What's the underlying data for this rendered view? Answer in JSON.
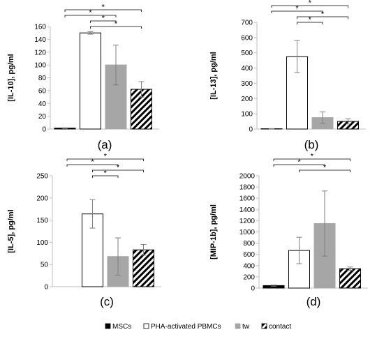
{
  "chart_data": [
    {
      "type": "bar",
      "panel_label": "(a)",
      "ylabel": "[IL-10], pg/ml",
      "ylim": [
        0,
        160
      ],
      "ytick_step": 20,
      "categories": [
        "MSCs",
        "PHA-activated PBMCs",
        "tw",
        "contact"
      ],
      "values": [
        1.5,
        150,
        100,
        62
      ],
      "errors": [
        0.5,
        2,
        31,
        12
      ],
      "significance": [
        {
          "from": 0,
          "to": 3,
          "label": "*"
        },
        {
          "from": 0,
          "to": 2,
          "label": "*"
        },
        {
          "from": 1,
          "to": 2,
          "label": "*"
        },
        {
          "from": 1,
          "to": 3,
          "label": "*"
        }
      ]
    },
    {
      "type": "bar",
      "panel_label": "(b)",
      "ylabel": "[IL-13], pg/ml",
      "ylim": [
        0,
        700
      ],
      "ytick_step": 100,
      "categories": [
        "MSCs",
        "PHA-activated PBMCs",
        "tw",
        "contact"
      ],
      "values": [
        2,
        475,
        75,
        50
      ],
      "errors": [
        1,
        105,
        38,
        17
      ],
      "significance": [
        {
          "from": 0,
          "to": 3,
          "label": "*"
        },
        {
          "from": 0,
          "to": 2,
          "label": "*"
        },
        {
          "from": 1,
          "to": 3,
          "label": "*"
        },
        {
          "from": 1,
          "to": 2,
          "label": "*"
        }
      ]
    },
    {
      "type": "bar",
      "panel_label": "(c)",
      "ylabel": "[IL-5], pg/ml",
      "ylim": [
        0,
        250
      ],
      "ytick_step": 50,
      "categories": [
        "MSCs",
        "PHA-activated PBMCs",
        "tw",
        "contact"
      ],
      "values": [
        0,
        164,
        68,
        83
      ],
      "errors": [
        0,
        32,
        42,
        12
      ],
      "significance": [
        {
          "from": 0,
          "to": 3,
          "label": "*"
        },
        {
          "from": 0,
          "to": 2,
          "label": "*"
        },
        {
          "from": 1,
          "to": 3,
          "label": "*"
        },
        {
          "from": 1,
          "to": 2,
          "label": "*"
        }
      ]
    },
    {
      "type": "bar",
      "panel_label": "(d)",
      "ylabel": "[MIP-1b], pg/ml",
      "ylim": [
        0,
        2000
      ],
      "ytick_step": 200,
      "categories": [
        "MSCs",
        "PHA-activated PBMCs",
        "tw",
        "contact"
      ],
      "values": [
        45,
        670,
        1150,
        345
      ],
      "errors": [
        10,
        235,
        580,
        30
      ],
      "significance": [
        {
          "from": 0,
          "to": 3,
          "label": "*"
        },
        {
          "from": 0,
          "to": 2,
          "label": "*"
        },
        {
          "from": 1,
          "to": 3,
          "label": "*"
        }
      ]
    }
  ],
  "legend": {
    "items": [
      {
        "label": "MSCs",
        "style": "black"
      },
      {
        "label": "PHA-activated PBMCs",
        "style": "white"
      },
      {
        "label": "tw",
        "style": "gray"
      },
      {
        "label": "contact",
        "style": "hatch"
      }
    ]
  },
  "colors": {
    "msc": "#000000",
    "pbmc": "#ffffff",
    "tw": "#a6a6a6",
    "contact": "#ffffff",
    "error": "#7f7f7f",
    "axis": "#bfbfbf"
  }
}
